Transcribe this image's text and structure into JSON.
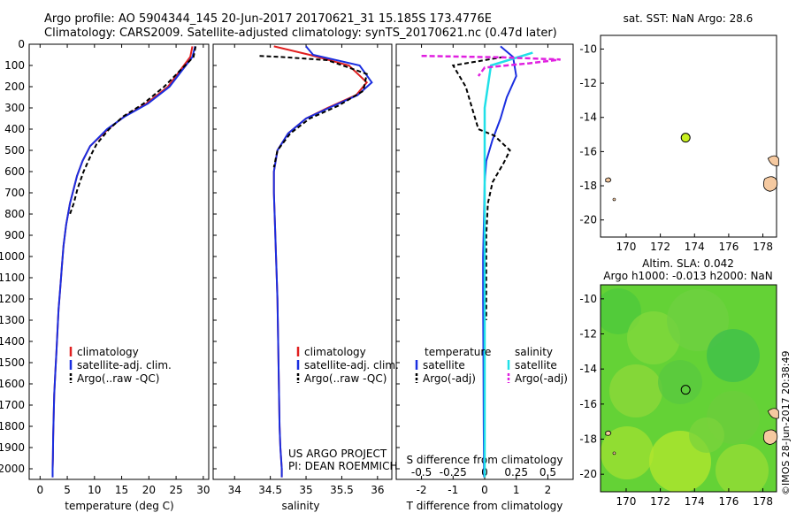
{
  "header": {
    "line1": "Argo profile: AO 5904344_145 20-Jun-2017 20170621_31 15.185S 173.4776E",
    "line2": "Climatology: CARS2009. Satellite-adjusted climatology: synTS_20170621.nc (0.47d later)"
  },
  "depth_ticks": [
    "0",
    "100",
    "200",
    "300",
    "400",
    "500",
    "600",
    "700",
    "800",
    "900",
    "1000",
    "1100",
    "1200",
    "1300",
    "1400",
    "1500",
    "1600",
    "1700",
    "1800",
    "1900",
    "2000"
  ],
  "colors": {
    "climatology": "#e02020",
    "satellite": "#1a2ee0",
    "argo": "#000000",
    "sal_satellite": "#20e0e8",
    "sal_argo": "#e020e0",
    "land": "#f5c9a0",
    "dot": "#c8f020"
  },
  "temp_panel": {
    "xlabel": "temperature (deg C)",
    "xticks": [
      "0",
      "5",
      "10",
      "15",
      "20",
      "25",
      "30"
    ],
    "legend": [
      "climatology",
      "satellite-adj. clim.",
      "Argo(..raw -QC)"
    ]
  },
  "sal_panel": {
    "xlabel": "salinity",
    "xticks": [
      "34",
      "34.5",
      "35",
      "35.5",
      "36"
    ],
    "legend": [
      "climatology",
      "satellite-adj. clim.",
      "Argo(..raw -QC)"
    ],
    "credit1": "US ARGO PROJECT",
    "credit2": "PI: DEAN ROEMMICH"
  },
  "diff_panel": {
    "xlabel": "T difference from climatology",
    "top_label": "S difference from climatology",
    "s_ticks": [
      "-0.5",
      "-0.25",
      "0",
      "0.25",
      "0.5"
    ],
    "t_ticks": [
      "-2",
      "-1",
      "0",
      "1",
      "2"
    ],
    "legend_t_title": "temperature",
    "legend_s_title": "salinity",
    "legend_t": [
      "satellite",
      "Argo(-adj)"
    ],
    "legend_s": [
      "satellite",
      "Argo(-adj)"
    ]
  },
  "map_top": {
    "title": "sat. SST: NaN Argo: 28.6",
    "yticks": [
      "-10",
      "-12",
      "-14",
      "-16",
      "-18",
      "-20"
    ],
    "xticks": [
      "170",
      "172",
      "174",
      "176",
      "178"
    ]
  },
  "map_bottom": {
    "title1": "Altim. SLA: 0.042",
    "title2": "Argo h1000: -0.013 h2000: NaN",
    "yticks": [
      "-10",
      "-12",
      "-14",
      "-16",
      "-18",
      "-20"
    ],
    "xticks": [
      "170",
      "172",
      "174",
      "176",
      "178"
    ]
  },
  "side_label": "©IMOS 28-Jun-2017 20:38:49",
  "chart_data": [
    {
      "type": "line",
      "xlabel": "temperature (deg C)",
      "ylabel": "",
      "xlim": [
        -2,
        31
      ],
      "ylim": [
        2050,
        0
      ],
      "series": [
        {
          "name": "climatology",
          "x": [
            28.0,
            27.6,
            23.5,
            19.5,
            15.5,
            12.5,
            9.2,
            7.8,
            6.8,
            6.2,
            5.5,
            4.8,
            4.3,
            4.0,
            3.7,
            3.4,
            3.2,
            3.0,
            2.8,
            2.6,
            2.5,
            2.4,
            2.35,
            2.3,
            2.3
          ],
          "y": [
            10,
            60,
            200,
            280,
            340,
            400,
            480,
            550,
            620,
            680,
            750,
            850,
            950,
            1050,
            1150,
            1250,
            1350,
            1450,
            1550,
            1650,
            1750,
            1850,
            1950,
            2000,
            2040
          ]
        },
        {
          "name": "satellite-adj. clim.",
          "x": [
            28.5,
            28.0,
            23.8,
            19.8,
            15.6,
            12.3,
            9.2,
            7.8,
            6.8,
            6.2,
            5.5,
            4.8,
            4.3,
            4.0,
            3.7,
            3.4,
            3.2,
            3.0,
            2.8,
            2.6,
            2.5,
            2.4,
            2.35,
            2.3,
            2.3
          ],
          "y": [
            10,
            60,
            200,
            280,
            340,
            400,
            480,
            550,
            620,
            680,
            750,
            850,
            950,
            1050,
            1150,
            1250,
            1350,
            1450,
            1550,
            1650,
            1750,
            1850,
            1950,
            2000,
            2040
          ]
        },
        {
          "name": "Argo(..raw -QC)",
          "x": [
            28.6,
            28.2,
            22.8,
            19.0,
            15.3,
            12.7,
            10.4,
            9.4,
            8.0,
            6.9,
            6.2,
            5.5
          ],
          "y": [
            10,
            60,
            200,
            280,
            340,
            400,
            470,
            520,
            600,
            680,
            750,
            800
          ]
        }
      ]
    },
    {
      "type": "line",
      "xlabel": "salinity",
      "ylabel": "",
      "xlim": [
        33.7,
        36.2
      ],
      "ylim": [
        2050,
        0
      ],
      "series": [
        {
          "name": "climatology",
          "x": [
            34.55,
            35.05,
            35.6,
            35.85,
            35.7,
            35.3,
            35.0,
            34.75,
            34.6,
            34.55,
            34.55,
            34.56,
            34.58,
            34.6,
            34.61,
            34.62,
            34.63,
            34.64,
            34.66,
            34.66
          ],
          "y": [
            10,
            50,
            100,
            180,
            240,
            300,
            350,
            420,
            500,
            600,
            700,
            800,
            1000,
            1200,
            1400,
            1600,
            1800,
            1900,
            2000,
            2040
          ]
        },
        {
          "name": "satellite-adj. clim.",
          "x": [
            35.0,
            35.1,
            35.75,
            35.92,
            35.72,
            35.32,
            35.0,
            34.75,
            34.6,
            34.55,
            34.55,
            34.56,
            34.58,
            34.6,
            34.61,
            34.62,
            34.63,
            34.64,
            34.66,
            34.66
          ],
          "y": [
            10,
            50,
            100,
            180,
            240,
            300,
            350,
            420,
            500,
            600,
            700,
            800,
            1000,
            1200,
            1400,
            1600,
            1800,
            1900,
            2000,
            2040
          ]
        },
        {
          "name": "Argo(..raw -QC)",
          "x": [
            34.35,
            34.65,
            35.3,
            35.85,
            35.8,
            35.45,
            35.05,
            34.78,
            34.6,
            34.55
          ],
          "y": [
            55,
            60,
            75,
            140,
            220,
            290,
            350,
            420,
            500,
            580
          ]
        }
      ]
    },
    {
      "type": "line",
      "xlabel": "T difference from climatology",
      "ylabel": "",
      "xlim": [
        -2.8,
        2.8
      ],
      "ylim": [
        2050,
        0
      ],
      "series": [
        {
          "name": "temperature satellite",
          "x": [
            0.5,
            0.9,
            1.0,
            0.7,
            0.5,
            0.25,
            0.05,
            0.0,
            -0.02,
            -0.05,
            -0.05,
            -0.04,
            -0.03,
            -0.02
          ],
          "y": [
            10,
            60,
            150,
            250,
            350,
            450,
            550,
            650,
            800,
            1000,
            1200,
            1500,
            1800,
            2040
          ]
        },
        {
          "name": "temperature Argo(-adj)",
          "x": [
            0.6,
            -1.0,
            -0.6,
            -0.4,
            -0.2,
            0.3,
            0.8,
            0.6,
            0.25,
            0.1,
            0.05,
            0.05
          ],
          "y": [
            60,
            100,
            200,
            300,
            400,
            430,
            500,
            560,
            650,
            750,
            900,
            1300
          ]
        },
        {
          "name": "salinity satellite",
          "x": [
            0.38,
            0.05,
            0.0,
            0.0,
            0.0,
            0.0,
            0.0,
            0.0
          ],
          "y": [
            40,
            100,
            300,
            500,
            800,
            1200,
            1600,
            2040
          ]
        },
        {
          "name": "salinity Argo(-adj)",
          "x": [
            -0.5,
            0.15,
            0.6,
            0.35,
            0.0,
            -0.05
          ],
          "y": [
            55,
            62,
            72,
            90,
            110,
            150
          ]
        }
      ]
    }
  ]
}
